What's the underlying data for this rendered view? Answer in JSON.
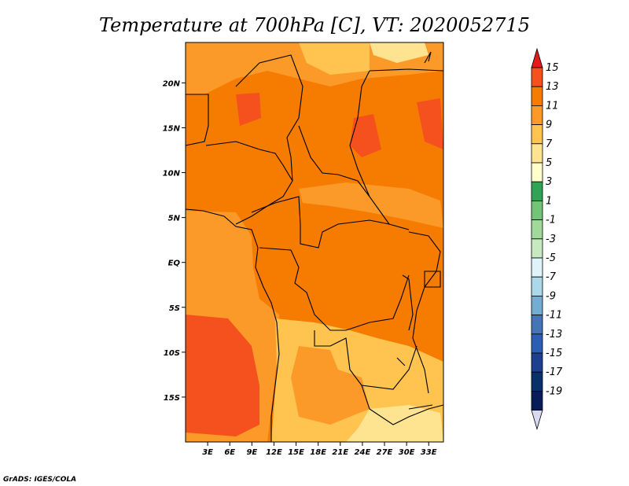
{
  "chart_data": {
    "type": "heatmap",
    "title": "Temperature at 700hPa [C], VT: 2020052715",
    "x_ticks": [
      "3E",
      "6E",
      "9E",
      "12E",
      "15E",
      "18E",
      "21E",
      "24E",
      "27E",
      "30E",
      "33E"
    ],
    "y_ticks": [
      "20N",
      "15N",
      "10N",
      "5N",
      "EQ",
      "5S",
      "10S",
      "15S"
    ],
    "xlim": [
      0,
      35
    ],
    "ylim": [
      -20,
      24.5
    ],
    "colorbar": {
      "labels": [
        "15",
        "13",
        "11",
        "9",
        "7",
        "5",
        "3",
        "1",
        "-1",
        "-3",
        "-5",
        "-7",
        "-9",
        "-11",
        "-13",
        "-15",
        "-17",
        "-19"
      ],
      "colors": [
        "#e31a1c",
        "#f4511e",
        "#f57c00",
        "#fb9a29",
        "#fec44f",
        "#fee391",
        "#ffffcc",
        "#31a354",
        "#74c476",
        "#a1d99b",
        "#c7e9c0",
        "#e0f3f8",
        "#abd9e9",
        "#74add1",
        "#4575b4",
        "#2c5fb3",
        "#1c3f8f",
        "#08306b",
        "#081d58",
        "#d9d9f3"
      ]
    },
    "field_summary": {
      "dominant_range": "9 to 13 C",
      "warm_core_max": "13 to 15 C",
      "cool_patches_min": "5 to 7 C"
    }
  },
  "credit": "GrADS: IGES/COLA"
}
